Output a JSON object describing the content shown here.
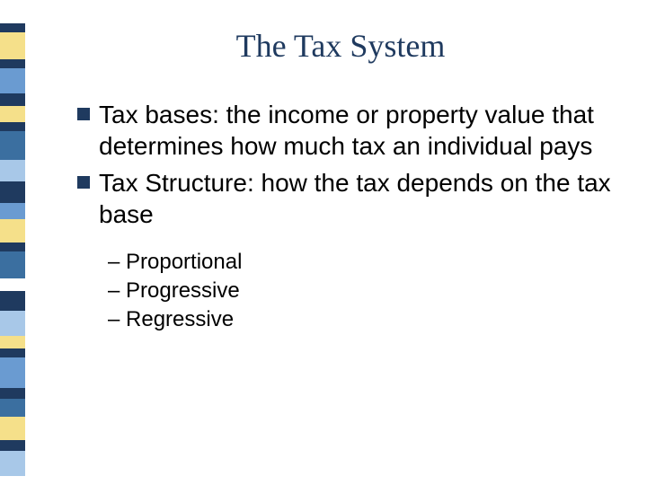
{
  "title": {
    "text": "The Tax System",
    "color": "#1f3a5f",
    "fontsize": 36
  },
  "bullets": [
    {
      "text": "Tax bases: the income or property value that determines how much tax an individual pays"
    },
    {
      "text": "Tax Structure: how the tax depends on the tax base"
    }
  ],
  "bullet_style": {
    "fontsize": 28,
    "color": "#000000",
    "square_color": "#1f3a5f",
    "square_size": 14
  },
  "sub_bullets": [
    {
      "text": "– Proportional"
    },
    {
      "text": "– Progressive"
    },
    {
      "text": "– Regressive"
    }
  ],
  "sub_bullet_style": {
    "fontsize": 24,
    "color": "#000000"
  },
  "sidebar_blocks": [
    {
      "color": "#ffffff",
      "height": 26
    },
    {
      "color": "#1f3a5f",
      "height": 10
    },
    {
      "color": "#f5e08a",
      "height": 30
    },
    {
      "color": "#1f3a5f",
      "height": 10
    },
    {
      "color": "#6a9bd1",
      "height": 28
    },
    {
      "color": "#1f3a5f",
      "height": 14
    },
    {
      "color": "#f5e08a",
      "height": 18
    },
    {
      "color": "#1f3a5f",
      "height": 10
    },
    {
      "color": "#3b6fa0",
      "height": 32
    },
    {
      "color": "#a8c8e8",
      "height": 24
    },
    {
      "color": "#1f3a5f",
      "height": 24
    },
    {
      "color": "#6a9bd1",
      "height": 18
    },
    {
      "color": "#f5e08a",
      "height": 26
    },
    {
      "color": "#1f3a5f",
      "height": 10
    },
    {
      "color": "#3b6fa0",
      "height": 30
    },
    {
      "color": "#ffffff",
      "height": 14
    },
    {
      "color": "#1f3a5f",
      "height": 22
    },
    {
      "color": "#a8c8e8",
      "height": 28
    },
    {
      "color": "#f5e08a",
      "height": 14
    },
    {
      "color": "#1f3a5f",
      "height": 10
    },
    {
      "color": "#6a9bd1",
      "height": 34
    },
    {
      "color": "#1f3a5f",
      "height": 12
    },
    {
      "color": "#3b6fa0",
      "height": 20
    },
    {
      "color": "#f5e08a",
      "height": 26
    },
    {
      "color": "#1f3a5f",
      "height": 12
    },
    {
      "color": "#a8c8e8",
      "height": 28
    }
  ]
}
